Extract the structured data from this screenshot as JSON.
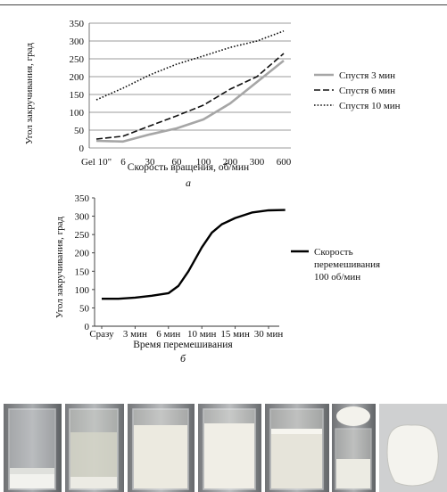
{
  "chart_data": [
    {
      "type": "line",
      "caption": "а",
      "xlabel": "Скорость вращения, об/мин",
      "ylabel": "Угол закручивания, град",
      "categories": [
        "Gel 10\"",
        "6",
        "30",
        "60",
        "100",
        "200",
        "300",
        "600"
      ],
      "ylim": [
        0,
        350
      ],
      "yticks": [
        0,
        50,
        100,
        150,
        200,
        250,
        300,
        350
      ],
      "grid": true,
      "legend_position": "right",
      "series": [
        {
          "name": "Спустя 3 мин",
          "style": "solid",
          "color": "#a6a6a6",
          "values": [
            20,
            18,
            38,
            55,
            80,
            125,
            185,
            245
          ]
        },
        {
          "name": "Спустя 6 мин",
          "style": "dashed",
          "color": "#111111",
          "values": [
            25,
            33,
            62,
            90,
            120,
            165,
            200,
            265
          ]
        },
        {
          "name": "Спустя 10 мин",
          "style": "dotted",
          "color": "#111111",
          "values": [
            135,
            168,
            205,
            235,
            258,
            282,
            300,
            328
          ]
        }
      ]
    },
    {
      "type": "line",
      "caption": "б",
      "xlabel": "Время перемешивания",
      "ylabel": "Угол закручивания, град",
      "categories": [
        "Сразу",
        "3 мин",
        "6 мин",
        "10 мин",
        "15 мин",
        "30 мин"
      ],
      "ylim": [
        0,
        350
      ],
      "yticks": [
        0,
        50,
        100,
        150,
        200,
        250,
        300,
        350
      ],
      "grid": false,
      "legend_position": "right",
      "series": [
        {
          "name": "Скорость перемешивания 100 об/мин",
          "style": "solid",
          "color": "#000000",
          "x": [
            0,
            0.5,
            1,
            1.5,
            2,
            2.3,
            2.6,
            3,
            3.3,
            3.6,
            4,
            4.5,
            5,
            5.5
          ],
          "values": [
            75,
            75,
            78,
            83,
            90,
            110,
            150,
            215,
            255,
            278,
            295,
            310,
            316,
            317
          ]
        }
      ]
    }
  ],
  "photos": [
    {
      "name": "beaker-1"
    },
    {
      "name": "beaker-2"
    },
    {
      "name": "beaker-3"
    },
    {
      "name": "beaker-4"
    },
    {
      "name": "beaker-5"
    },
    {
      "name": "beaker-6"
    },
    {
      "name": "gel-lump"
    }
  ]
}
